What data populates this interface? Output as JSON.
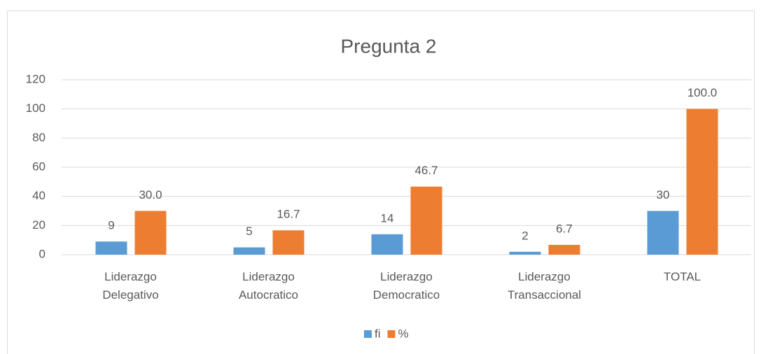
{
  "chart_data": {
    "type": "bar",
    "title": "Pregunta 2",
    "categories": [
      "Liderazgo Delegativo",
      "Liderazgo Autocratico",
      "Liderazgo Democratico",
      "Liderazgo Transaccional",
      "TOTAL"
    ],
    "series": [
      {
        "name": "fi",
        "color": "#5b9bd5",
        "values": [
          9,
          5,
          14,
          2,
          30
        ]
      },
      {
        "name": "%",
        "color": "#ed7d31",
        "values": [
          30,
          16.7,
          46.7,
          6.7,
          100
        ],
        "value_labels": [
          "30.0",
          "16.7",
          "46.7",
          "6.7",
          "100.0"
        ]
      }
    ],
    "ylim": [
      0,
      120
    ],
    "yticks": [
      0,
      20,
      40,
      60,
      80,
      100,
      120
    ],
    "grid": true,
    "legend": "bottom"
  }
}
